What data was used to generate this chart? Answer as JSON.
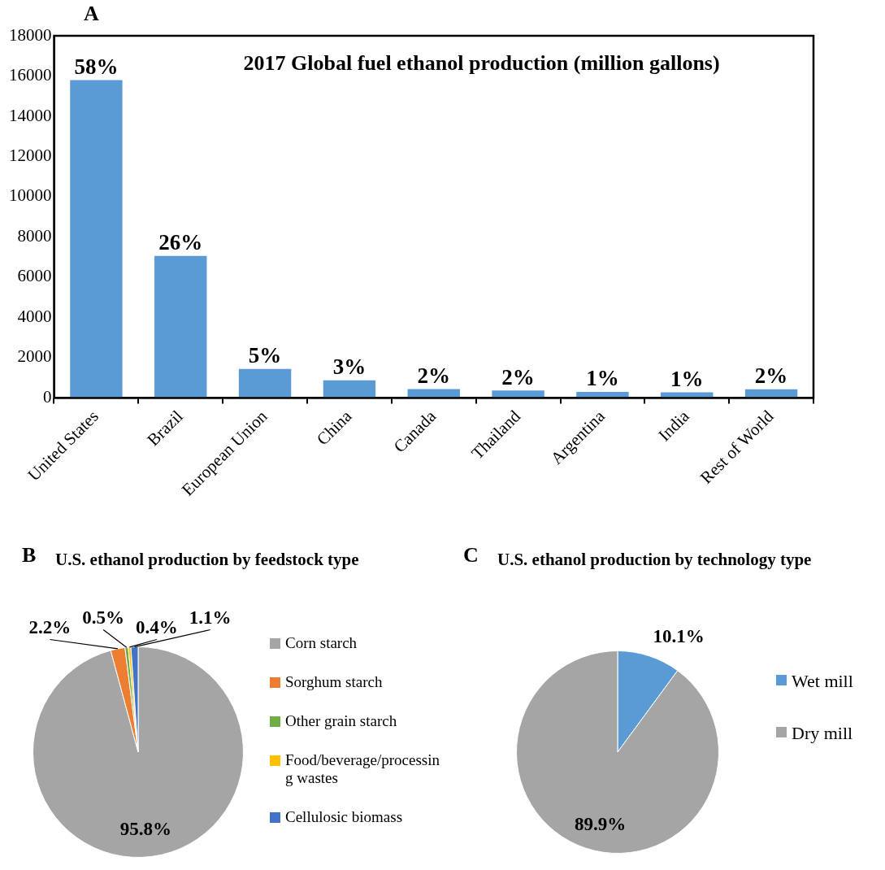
{
  "chart_data": [
    {
      "type": "bar",
      "title": "2017 Global fuel ethanol production (million gallons)",
      "annotations": [
        "A",
        {
          "text": "58%",
          "x": "United States",
          "y": 15800
        },
        {
          "text": "26%",
          "x": "Brazil",
          "y": 7060
        },
        {
          "text": "5%",
          "x": "European Union",
          "y": 1440
        },
        {
          "text": "3%",
          "x": "China",
          "y": 880
        },
        {
          "text": "2%",
          "x": "Canada",
          "y": 440
        },
        {
          "text": "2%",
          "x": "Thailand",
          "y": 370
        },
        {
          "text": "1%",
          "x": "Argentina",
          "y": 300
        },
        {
          "text": "1%",
          "x": "India",
          "y": 280
        },
        {
          "text": "2%",
          "x": "Rest of World",
          "y": 430
        }
      ],
      "categories": [
        "United States",
        "Brazil",
        "European Union",
        "China",
        "Canada",
        "Thailand",
        "Argentina",
        "India",
        "Rest of World"
      ],
      "values": [
        15800,
        7060,
        1440,
        880,
        440,
        370,
        300,
        280,
        430
      ],
      "color": "#5b9bd5",
      "ylim": [
        0,
        18000
      ],
      "yticks": [
        0,
        2000,
        4000,
        6000,
        8000,
        10000,
        12000,
        14000,
        16000,
        18000
      ],
      "grid": false,
      "legend": false
    },
    {
      "type": "pie",
      "title": "U.S. ethanol production by feedstock type",
      "annotations": [
        "B"
      ],
      "categories": [
        "Corn starch",
        "Sorghum starch",
        "Other grain starch",
        "Food/beverage/processing wastes",
        "Cellulosic biomass"
      ],
      "values": [
        95.8,
        2.2,
        0.5,
        0.4,
        1.1
      ],
      "value_labels": [
        "95.8%",
        "2.2%",
        "0.5%",
        "0.4%",
        "1.1%"
      ],
      "colors": [
        "#a5a5a5",
        "#ed7d31",
        "#70ad47",
        "#ffc000",
        "#4472c4"
      ],
      "legend": "right"
    },
    {
      "type": "pie",
      "title": "U.S. ethanol production by technology type",
      "annotations": [
        "C"
      ],
      "categories": [
        "Wet mill",
        "Dry mill"
      ],
      "values": [
        10.1,
        89.9
      ],
      "value_labels": [
        "10.1%",
        "89.9%"
      ],
      "colors": [
        "#5b9bd5",
        "#a5a5a5"
      ],
      "legend": "right"
    }
  ]
}
